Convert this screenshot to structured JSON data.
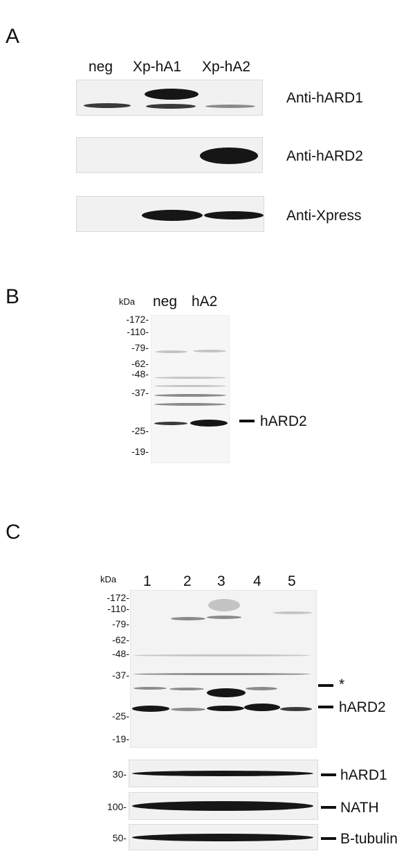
{
  "panel_a": {
    "letter": "A",
    "lanes": [
      "neg",
      "Xp-hA1",
      "Xp-hA2"
    ],
    "blots": [
      "Anti-hARD1",
      "Anti-hARD2",
      "Anti-Xpress"
    ]
  },
  "panel_b": {
    "letter": "B",
    "kda": "kDa",
    "lanes": [
      "neg",
      "hA2"
    ],
    "markers": [
      "-172-",
      "-110-",
      "-79-",
      "-62-",
      "-48-",
      "-37-",
      "-25-",
      "-19-"
    ],
    "band_label": "hARD2"
  },
  "panel_c": {
    "letter": "C",
    "kda": "kDa",
    "lanes": [
      "1",
      "2",
      "3",
      "4",
      "5"
    ],
    "markers": [
      "-172-",
      "-110-",
      "-79-",
      "-62-",
      "-48-",
      "-37-",
      "-25-",
      "-19-"
    ],
    "star": "*",
    "band_label": "hARD2",
    "strips": [
      {
        "marker": "30-",
        "label": "hARD1"
      },
      {
        "marker": "100-",
        "label": "NATH"
      },
      {
        "marker": "50-",
        "label": "B-tubulin"
      }
    ]
  }
}
